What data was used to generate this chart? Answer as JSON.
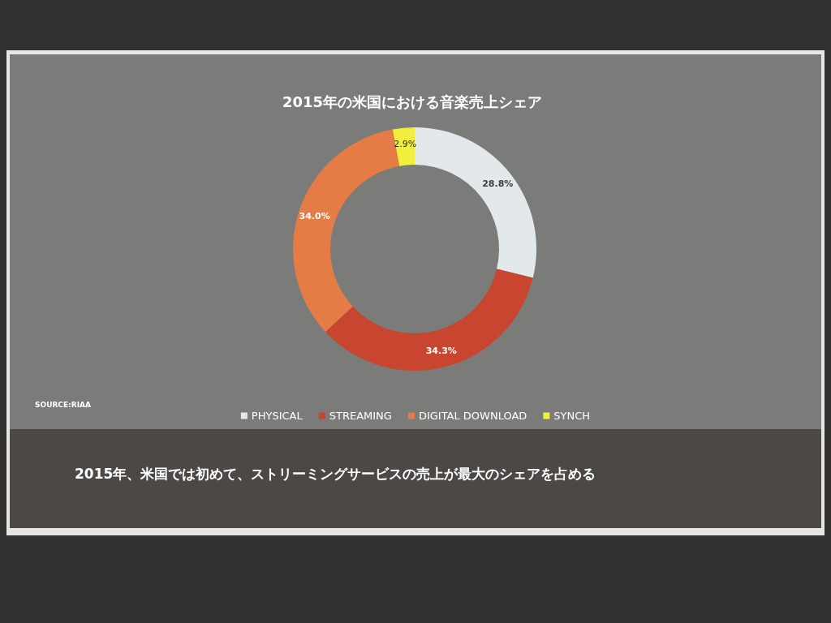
{
  "chart_data": {
    "type": "donut",
    "title": "2015年の米国における音楽売上シェア",
    "categories": [
      "PHYSICAL",
      "STREAMING",
      "DIGITAL DOWNLOAD",
      "SYNCH"
    ],
    "values": [
      28.8,
      34.3,
      34.0,
      2.9
    ],
    "colors": [
      "#e3e9ea",
      "#c8452f",
      "#e57c45",
      "#f2ee3c"
    ],
    "value_labels": [
      "28.8%",
      "34.3%",
      "34.0%",
      "2.9%"
    ],
    "legend": "bottom",
    "annotations": [
      "SOURCE:RIAA",
      "2015年、米国では初めて、ストリーミングサービスの売上が最大のシェアを占める"
    ]
  }
}
